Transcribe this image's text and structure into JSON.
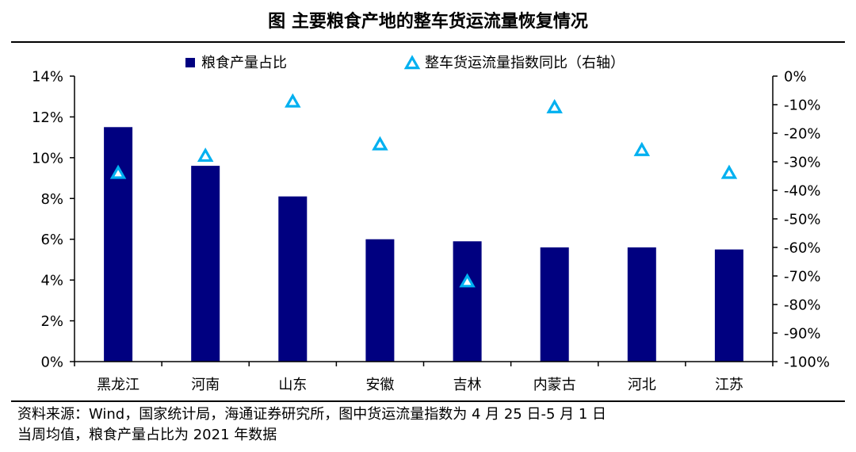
{
  "header": {
    "title": "图  主要粮食产地的整车货运流量恢复情况"
  },
  "footer": {
    "source_line1": "资料来源：Wind，国家统计局，海通证券研究所，图中货运流量指数为 4 月 25 日-5 月 1 日",
    "source_line2": "当周均值，粮食产量占比为 2021 年数据"
  },
  "colors": {
    "bar": "#000080",
    "marker": "#00B0F0"
  },
  "chart_data": {
    "type": "bar",
    "categories": [
      "黑龙江",
      "河南",
      "山东",
      "安徽",
      "吉林",
      "内蒙古",
      "河北",
      "江苏"
    ],
    "series": [
      {
        "name": "粮食产量占比",
        "type": "bar",
        "axis": "left",
        "values": [
          11.5,
          9.6,
          8.1,
          6.0,
          5.9,
          5.6,
          5.6,
          5.5
        ]
      },
      {
        "name": "整车货运流量指数同比（右轴）",
        "type": "scatter",
        "marker": "triangle",
        "axis": "right",
        "values": [
          -34,
          -28,
          -9,
          -24,
          -72,
          -11,
          -26,
          -34
        ]
      }
    ],
    "y_left": {
      "min": 0,
      "max": 14,
      "step": 2,
      "unit": "%"
    },
    "y_right": {
      "min": -100,
      "max": 0,
      "step": 10,
      "unit": "%"
    },
    "left_tick_labels": [
      "14%",
      "12%",
      "10%",
      "8%",
      "6%",
      "4%",
      "2%",
      "0%"
    ],
    "right_tick_labels": [
      "0%",
      "-10%",
      "-20%",
      "-30%",
      "-40%",
      "-50%",
      "-60%",
      "-70%",
      "-80%",
      "-90%",
      "-100%"
    ],
    "legend_position": "top",
    "grid": false
  }
}
